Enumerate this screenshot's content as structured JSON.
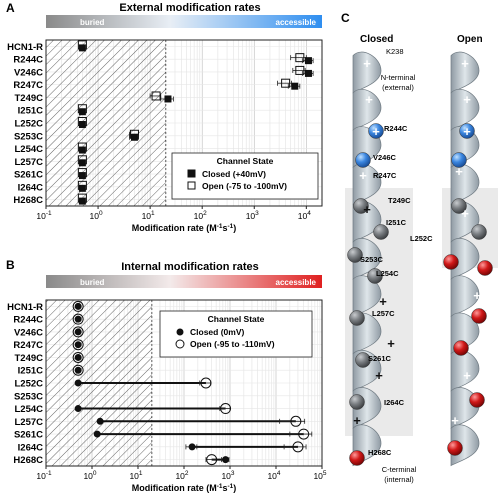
{
  "panel_labels": {
    "a": "A",
    "b": "B",
    "c": "C"
  },
  "chart_data": [
    {
      "type": "scatter",
      "panel": "A",
      "title": "External modification rates",
      "gradient_bar": {
        "left_label": "buried",
        "right_label": "accessible",
        "color": "#2e8ef0"
      },
      "categories": [
        "HCN1-R",
        "R244C",
        "V246C",
        "R247C",
        "T249C",
        "I251C",
        "L252C",
        "S253C",
        "L254C",
        "L257C",
        "S261C",
        "I264C",
        "H268C"
      ],
      "xscale": "log",
      "xlim": [
        0.1,
        20000
      ],
      "xticks": [
        {
          "v": 0.1,
          "base": "10",
          "exp": "-1"
        },
        {
          "v": 1,
          "base": "10",
          "exp": "0"
        },
        {
          "v": 10,
          "base": "10",
          "exp": "1"
        },
        {
          "v": 100,
          "base": "10",
          "exp": "2"
        },
        {
          "v": 1000,
          "base": "10",
          "exp": "3"
        },
        {
          "v": 10000,
          "base": "10",
          "exp": "4"
        }
      ],
      "xlabel": {
        "main": "Modification rate (M",
        "sup": "-1",
        "mid": "s",
        "sup2": "-1",
        "end": ")"
      },
      "hatched_region_max": 20,
      "legend": {
        "title": "Channel State",
        "entries": [
          "Closed (+40mV)",
          "Open (-75 to -100mV)"
        ],
        "placement": "lower-right"
      },
      "series": [
        {
          "name": "Closed (+40mV)",
          "marker": "filled-square",
          "values": [
            0.5,
            11000,
            11000,
            6000,
            22,
            0.5,
            0.5,
            5,
            0.5,
            0.5,
            0.5,
            0.5,
            0.5
          ],
          "err": [
            0,
            2500,
            2500,
            1500,
            6,
            0,
            0,
            1,
            0,
            0,
            0,
            0,
            0
          ]
        },
        {
          "name": "Open (-75 to -100mV)",
          "marker": "open-square",
          "values": [
            0.5,
            7500,
            7500,
            4000,
            13,
            0.5,
            0.5,
            5,
            0.5,
            0.5,
            0.5,
            0.5,
            0.5
          ],
          "err": [
            0,
            2500,
            2000,
            1200,
            3,
            0,
            0,
            1,
            0,
            0,
            0,
            0,
            0
          ]
        }
      ]
    },
    {
      "type": "scatter",
      "panel": "B",
      "title": "Internal modification rates",
      "gradient_bar": {
        "left_label": "buried",
        "right_label": "accessible",
        "color": "#e02020"
      },
      "categories": [
        "HCN1-R",
        "R244C",
        "V246C",
        "R247C",
        "T249C",
        "I251C",
        "L252C",
        "S253C",
        "L254C",
        "L257C",
        "S261C",
        "I264C",
        "H268C"
      ],
      "xscale": "log",
      "xlim": [
        0.1,
        100000
      ],
      "xticks": [
        {
          "v": 0.1,
          "base": "10",
          "exp": "-1"
        },
        {
          "v": 1,
          "base": "10",
          "exp": "0"
        },
        {
          "v": 10,
          "base": "10",
          "exp": "1"
        },
        {
          "v": 100,
          "base": "10",
          "exp": "2"
        },
        {
          "v": 1000,
          "base": "10",
          "exp": "3"
        },
        {
          "v": 10000,
          "base": "10",
          "exp": "4"
        },
        {
          "v": 100000,
          "base": "10",
          "exp": "5"
        }
      ],
      "xlabel": {
        "main": "Modification rate (M",
        "sup": "-1",
        "mid": "s",
        "sup2": "-1",
        "end": ")"
      },
      "hatched_region_max": 20,
      "legend": {
        "title": "Channel State",
        "entries": [
          "Closed (0mV)",
          "Open (-95 to -110mV)"
        ],
        "placement": "upper-right"
      },
      "series": [
        {
          "name": "Closed (0mV)",
          "marker": "filled-circle",
          "values": [
            0.5,
            0.5,
            0.5,
            0.5,
            0.5,
            0.5,
            0.5,
            null,
            0.5,
            1.5,
            1.3,
            150,
            800
          ],
          "err": [
            0,
            0,
            0,
            0,
            0,
            0,
            0,
            0,
            0,
            0,
            0,
            40,
            150
          ]
        },
        {
          "name": "Open (-95 to -110mV)",
          "marker": "open-circle",
          "values": [
            0.5,
            0.5,
            0.5,
            0.5,
            0.5,
            0.5,
            300,
            null,
            800,
            27000,
            40000,
            30000,
            400
          ],
          "err": [
            0,
            0,
            0,
            0,
            0,
            0,
            80,
            0,
            200,
            15000,
            20000,
            15000,
            100
          ]
        }
      ]
    }
  ],
  "panel_c": {
    "closed_label": "Closed",
    "open_label": "Open",
    "top_residue": "K238",
    "n_terminal": [
      "N-terminal",
      "(external)"
    ],
    "c_terminal": [
      "C-terminal",
      "(internal)"
    ],
    "residue_labels": [
      {
        "text": "R244C"
      },
      {
        "text": "V246C"
      },
      {
        "text": "R247C"
      },
      {
        "text": "T249C"
      },
      {
        "text": "I251C"
      },
      {
        "text": "L252C"
      },
      {
        "text": "S253C"
      },
      {
        "text": "L254C"
      },
      {
        "text": "L257C"
      },
      {
        "text": "S261C"
      },
      {
        "text": "I264C"
      },
      {
        "text": "H268C"
      }
    ],
    "colors": {
      "helix": "#b9c4cc",
      "blue": "#3a86e0",
      "red": "#d01818",
      "gray": "#7b7f83"
    }
  }
}
